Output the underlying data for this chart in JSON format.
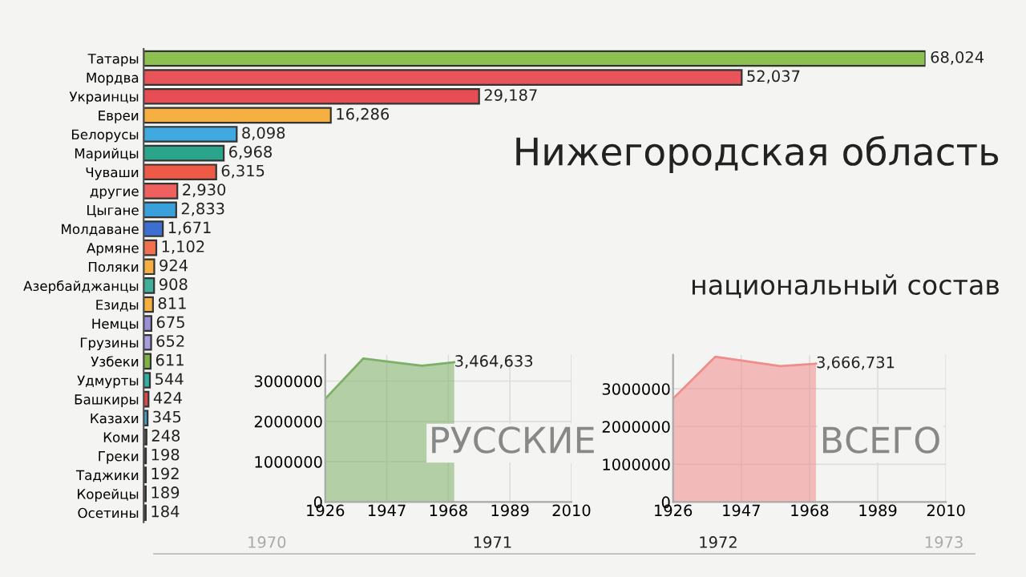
{
  "chart_data": [
    {
      "type": "bar",
      "orientation": "horizontal",
      "title": "Нижегородская область",
      "subtitle": "национальный состав",
      "categories": [
        "Татары",
        "Мордва",
        "Украинцы",
        "Евреи",
        "Белорусы",
        "Марийцы",
        "Чуваши",
        "другие",
        "Цыгане",
        "Молдаване",
        "Армяне",
        "Поляки",
        "Азербайджанцы",
        "Езиды",
        "Немцы",
        "Грузины",
        "Узбеки",
        "Удмурты",
        "Башкиры",
        "Казахи",
        "Коми",
        "Греки",
        "Таджики",
        "Корейцы",
        "Осетины"
      ],
      "values": [
        68024,
        52037,
        29187,
        16286,
        8098,
        6968,
        6315,
        2930,
        2833,
        1671,
        1102,
        924,
        908,
        811,
        675,
        652,
        611,
        544,
        424,
        345,
        248,
        198,
        192,
        189,
        184
      ],
      "value_labels": [
        "68,024",
        "52,037",
        "29,187",
        "16,286",
        "8,098",
        "6,968",
        "6,315",
        "2,930",
        "2,833",
        "1,671",
        "1,102",
        "924",
        "908",
        "811",
        "675",
        "652",
        "611",
        "544",
        "424",
        "345",
        "248",
        "198",
        "192",
        "189",
        "184"
      ],
      "colors": [
        "#8cc152",
        "#e9545a",
        "#e64d55",
        "#f5b041",
        "#3fa9e0",
        "#2aa58c",
        "#ee5a45",
        "#f0605e",
        "#3aa0dc",
        "#3d6fd0",
        "#f07050",
        "#f5b041",
        "#3fb09a",
        "#f5b041",
        "#9b8fd8",
        "#a99ee0",
        "#7cb342",
        "#30b0a0",
        "#e04848",
        "#40a0d0",
        "#555555",
        "#444455",
        "#444455",
        "#a04545",
        "#444444"
      ],
      "annotations": [
        "1970",
        "1971",
        "1972",
        "1973"
      ]
    },
    {
      "type": "area",
      "x": [
        1926,
        1939,
        1959,
        1970
      ],
      "series": [
        {
          "color": "#7cb066",
          "values": [
            2560000,
            3560000,
            3380000,
            3464633
          ]
        }
      ],
      "value_labels": [
        null,
        null,
        null,
        "3,464,633"
      ],
      "annotations": [
        "РУССКИЕ"
      ],
      "xlim": [
        1926,
        2010
      ],
      "xticks": [
        1926,
        1947,
        1968,
        1989,
        2010
      ],
      "ylim": [
        0,
        3650000
      ],
      "yticks": [
        0,
        1000000,
        2000000,
        3000000
      ],
      "grid": true
    },
    {
      "type": "area",
      "x": [
        1926,
        1939,
        1959,
        1970
      ],
      "series": [
        {
          "color": "#f08c8c",
          "values": [
            2740000,
            3850000,
            3600000,
            3666731
          ]
        }
      ],
      "value_labels": [
        null,
        null,
        null,
        "3,666,731"
      ],
      "annotations": [
        "ВСЕГО"
      ],
      "xlim": [
        1926,
        2010
      ],
      "xticks": [
        1926,
        1947,
        1968,
        1989,
        2010
      ],
      "ylim": [
        0,
        3900000
      ],
      "yticks": [
        0,
        1000000,
        2000000,
        3000000
      ],
      "grid": true
    }
  ]
}
